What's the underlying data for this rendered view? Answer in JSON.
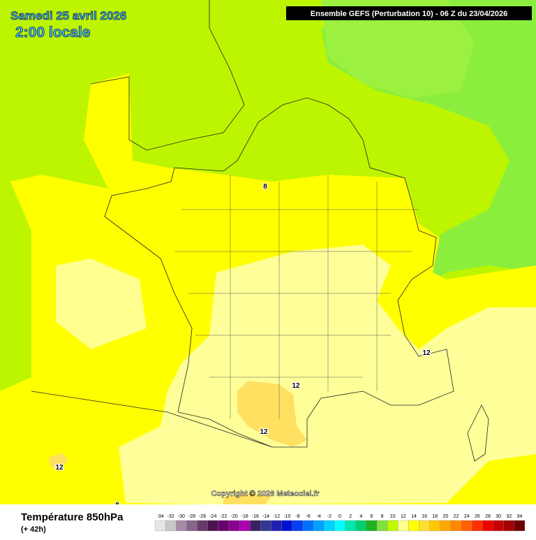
{
  "header": {
    "date": "Samedi 25 avril 2026",
    "local_time": "2:00 locale",
    "run_info": "Ensemble GEFS  (Perturbation 10)  -  06 Z du 23/04/2026"
  },
  "map": {
    "contour_labels": [
      "8",
      "12",
      "12",
      "12",
      "12",
      "8"
    ],
    "copyright": "Copyright © 2026 Meteociel.fr"
  },
  "legend": {
    "title": "Température 850hPa",
    "lead_time": "(+ 42h)",
    "ticks": [
      -34,
      -32,
      -30,
      -28,
      -26,
      -24,
      -22,
      -20,
      -18,
      -16,
      -14,
      -12,
      -10,
      -8,
      -6,
      -4,
      -2,
      0,
      2,
      4,
      6,
      8,
      10,
      12,
      14,
      16,
      18,
      20,
      22,
      24,
      26,
      28,
      30,
      32,
      34
    ],
    "colors": [
      "#e6e6e6",
      "#c8c8c8",
      "#a68aa6",
      "#86668a",
      "#663a6a",
      "#4a1450",
      "#6a0070",
      "#8a0090",
      "#aa00b0",
      "#3a2060",
      "#303890",
      "#2020b0",
      "#0010d0",
      "#0040f0",
      "#0070ff",
      "#00a0ff",
      "#00d0ff",
      "#00ffff",
      "#00e8b0",
      "#00d070",
      "#20b020",
      "#80e040",
      "#c0f800",
      "#ffff90",
      "#ffff00",
      "#ffe030",
      "#ffc800",
      "#ffa800",
      "#ff8800",
      "#ff6000",
      "#ff3000",
      "#ee0000",
      "#c80000",
      "#a00000",
      "#700000"
    ]
  }
}
